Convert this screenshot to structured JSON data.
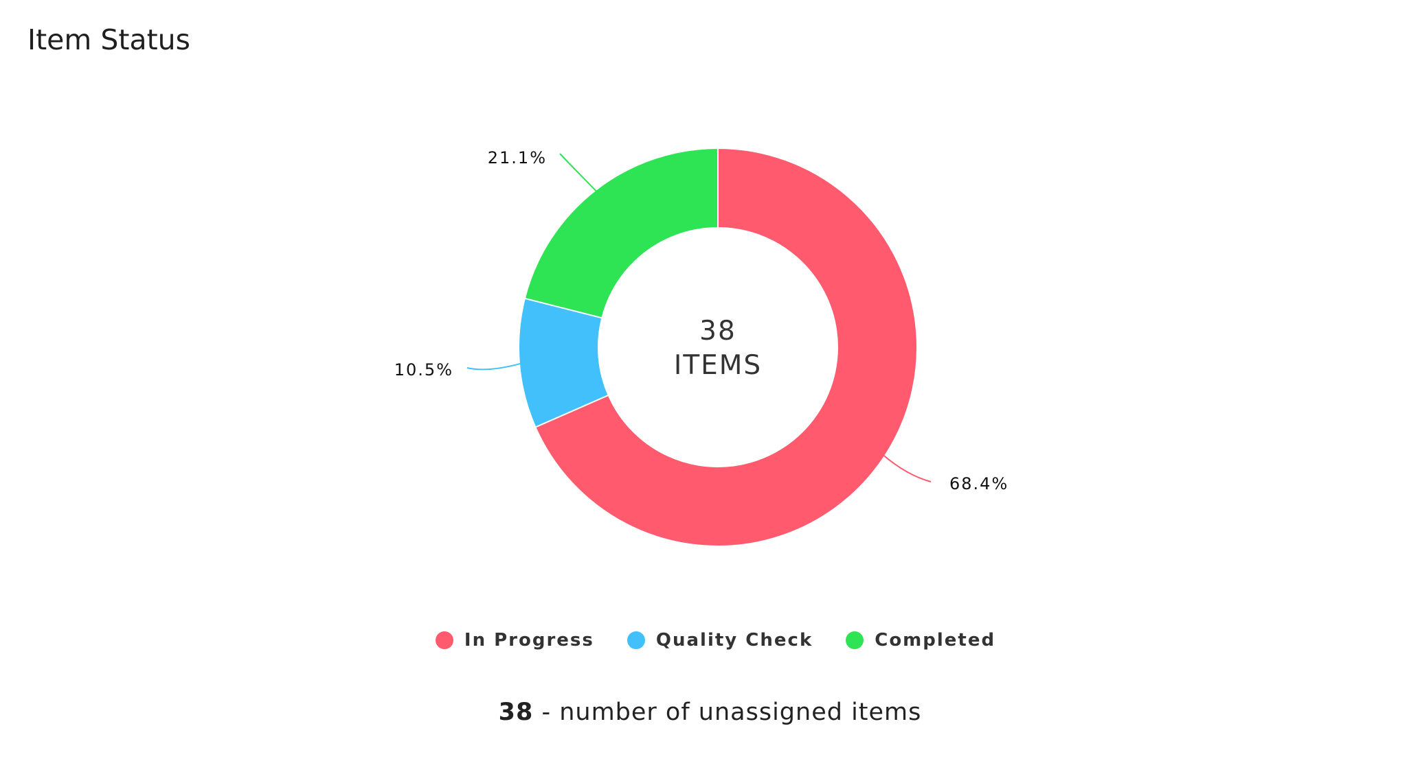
{
  "card": {
    "title": "Item Status"
  },
  "chart_data": {
    "type": "pie",
    "variant": "donut",
    "center_label": {
      "value": "38",
      "unit": "ITEMS"
    },
    "total": 38,
    "slices": [
      {
        "name": "In Progress",
        "value": 26,
        "percent_label": "68.4%",
        "color": "#ff5a6e"
      },
      {
        "name": "Quality Check",
        "value": 4,
        "percent_label": "10.5%",
        "color": "#42c0fb"
      },
      {
        "name": "Completed",
        "value": 8,
        "percent_label": "21.1%",
        "color": "#2ee454"
      }
    ],
    "legend_position": "bottom"
  },
  "legend": {
    "items": [
      {
        "label": "In Progress",
        "color": "#ff5a6e"
      },
      {
        "label": "Quality Check",
        "color": "#42c0fb"
      },
      {
        "label": "Completed",
        "color": "#2ee454"
      }
    ]
  },
  "summary": {
    "count": "38",
    "text": "- number of unassigned items"
  }
}
